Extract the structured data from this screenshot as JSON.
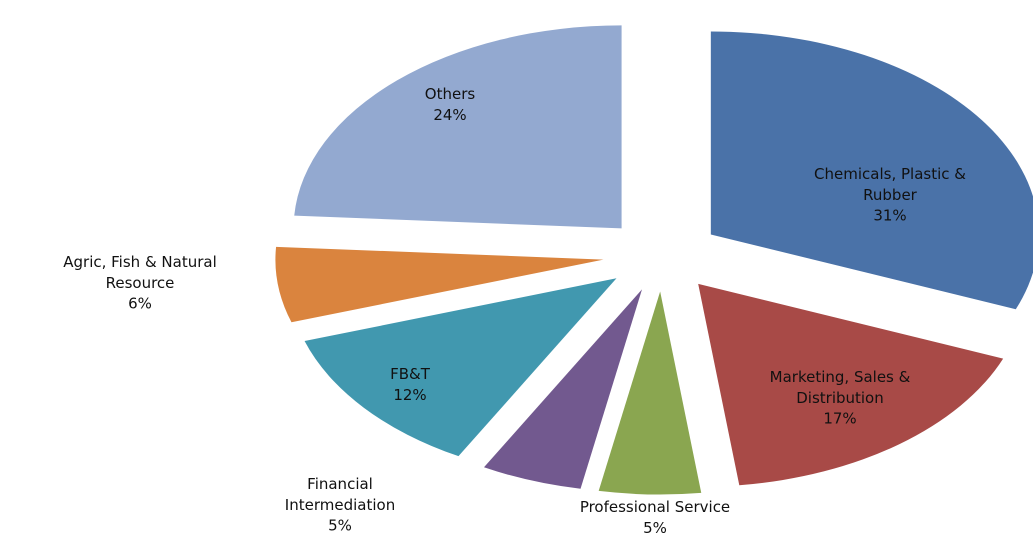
{
  "chart_data": {
    "type": "pie",
    "categories": [
      "Chemicals, Plastic & Rubber",
      "Marketing, Sales & Distribution",
      "Professional Service",
      "Financial Intermediation",
      "FB&T",
      "Agric, Fish & Natural Resource",
      "Others"
    ],
    "values": [
      31,
      17,
      5,
      5,
      12,
      6,
      24
    ],
    "value_labels": [
      "31%",
      "17%",
      "5%",
      "5%",
      "12%",
      "6%",
      "24%"
    ],
    "colors": [
      "#4a72a8",
      "#a84a47",
      "#8aa650",
      "#72598f",
      "#4198af",
      "#da843e",
      "#93a9d0"
    ]
  }
}
